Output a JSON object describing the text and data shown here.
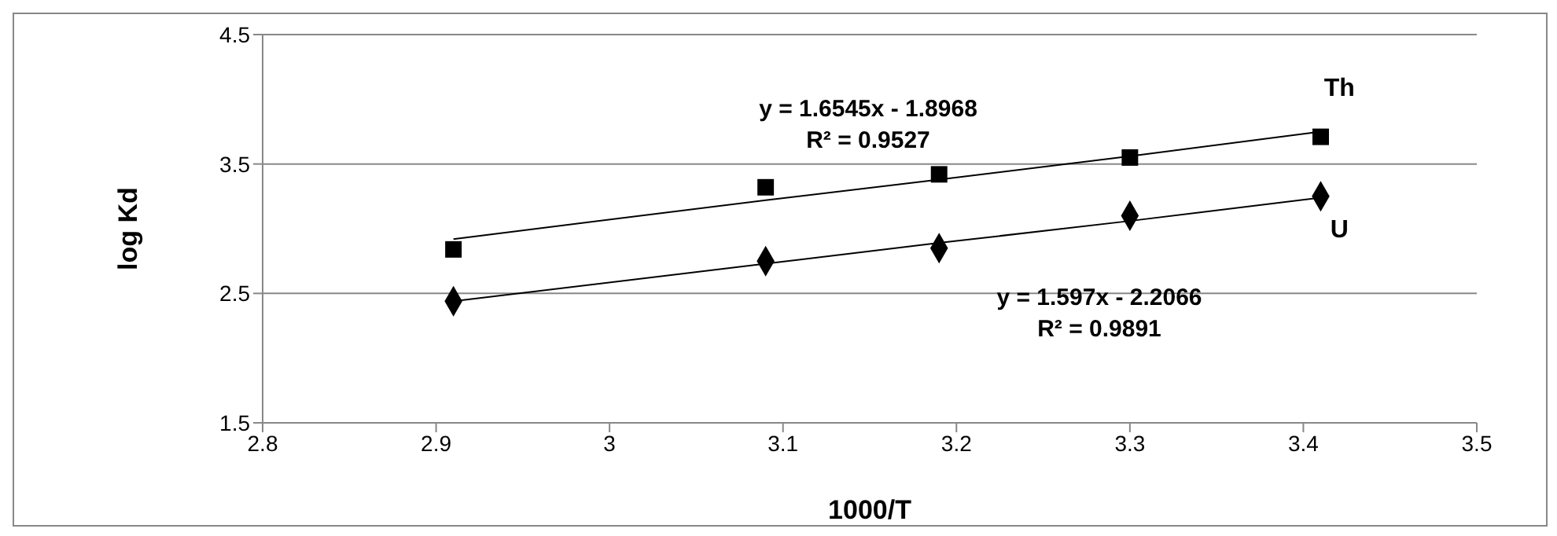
{
  "chart_data": {
    "type": "scatter",
    "xlabel": "1000/T",
    "ylabel": "log Kd",
    "xlim": [
      2.8,
      3.5
    ],
    "xticks": [
      2.8,
      2.9,
      3,
      3.1,
      3.2,
      3.3,
      3.4,
      3.5
    ],
    "ylim": [
      1.5,
      4.5
    ],
    "yticks": [
      1.5,
      2.5,
      3.5,
      4.5
    ],
    "grid": "y",
    "x": [
      2.91,
      3.09,
      3.19,
      3.3,
      3.41
    ],
    "series": [
      {
        "name": "Th",
        "color": "#000000",
        "marker": "square",
        "values": [
          2.84,
          3.32,
          3.42,
          3.55,
          3.71
        ]
      },
      {
        "name": "U",
        "color": "#000000",
        "marker": "diamond",
        "values": [
          2.44,
          2.75,
          2.85,
          3.1,
          3.25
        ]
      },
      {
        "type": "line",
        "color": "#000000",
        "marker": "none",
        "values": [
          2.92,
          3.22,
          3.38,
          3.56,
          3.75
        ]
      },
      {
        "type": "line",
        "color": "#000000",
        "marker": "none",
        "values": [
          2.44,
          2.73,
          2.89,
          3.06,
          3.24
        ]
      }
    ],
    "annotations": [
      "y = 1.6545x - 1.8968",
      "R² = 0.9527",
      "y = 1.597x - 2.2066",
      "R² = 0.9891"
    ]
  }
}
